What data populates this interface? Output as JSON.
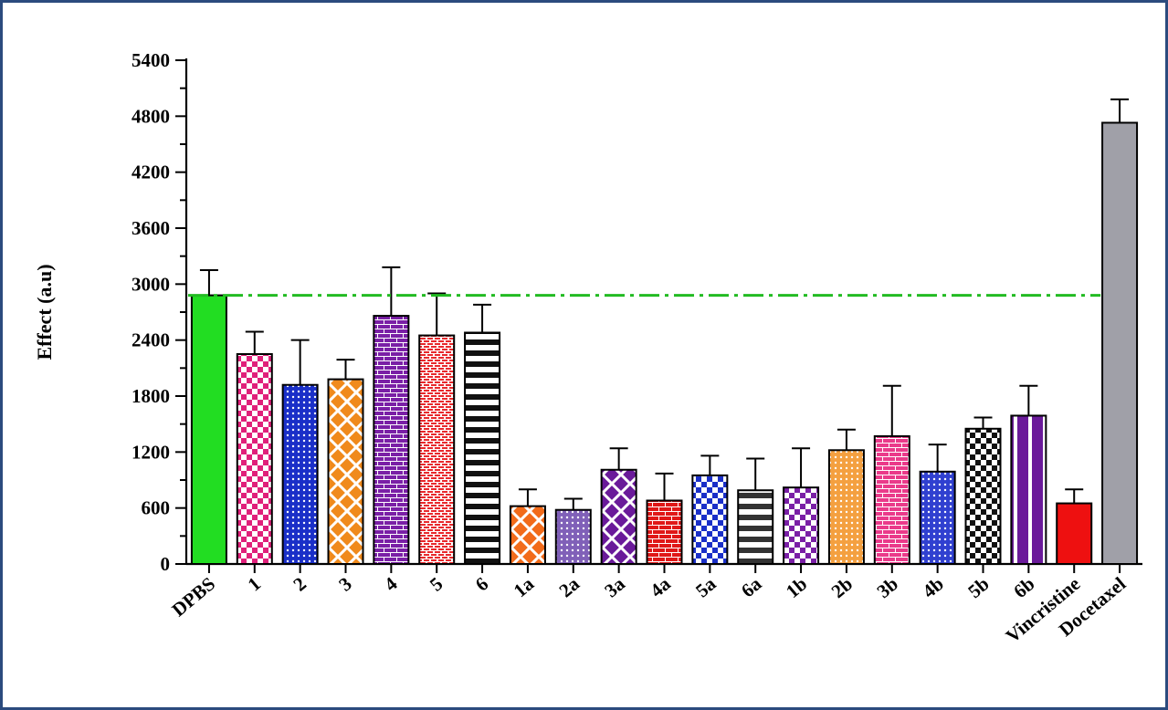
{
  "chart_data": {
    "type": "bar",
    "ylabel": "Effect (a.u)",
    "xlabel": "",
    "ylim": [
      0,
      5400
    ],
    "yticks": [
      0,
      600,
      1200,
      1800,
      2400,
      3000,
      3600,
      4200,
      4800,
      5400
    ],
    "grid": false,
    "reference_line": {
      "value": 2880,
      "style": "dash-dot",
      "color": "#22bb22"
    },
    "categories": [
      "DPBS",
      "1",
      "2",
      "3",
      "4",
      "5",
      "6",
      "1a",
      "2a",
      "3a",
      "4a",
      "5a",
      "6a",
      "1b",
      "2b",
      "3b",
      "4b",
      "5b",
      "6b",
      "Vincristine",
      "Docetaxel"
    ],
    "values": [
      2880,
      2250,
      1920,
      1980,
      2660,
      2450,
      2480,
      620,
      580,
      1010,
      680,
      950,
      790,
      820,
      1220,
      1370,
      990,
      1450,
      1590,
      650,
      4730
    ],
    "errors": [
      270,
      240,
      480,
      210,
      520,
      450,
      300,
      180,
      120,
      230,
      290,
      210,
      340,
      420,
      220,
      540,
      290,
      120,
      320,
      150,
      250
    ],
    "bar_styles": [
      {
        "fill": "#22dd22",
        "pattern": "solid"
      },
      {
        "fill": "#e0207a",
        "pattern": "checker"
      },
      {
        "fill": "#1a2fc8",
        "pattern": "dots"
      },
      {
        "fill": "#f08a1c",
        "pattern": "diamond"
      },
      {
        "fill": "#7a1fa6",
        "pattern": "brick"
      },
      {
        "fill": "#e8282c",
        "pattern": "smallbrick"
      },
      {
        "fill": "#111111",
        "pattern": "hstripe"
      },
      {
        "fill": "#f26b1a",
        "pattern": "diamond"
      },
      {
        "fill": "#8060b8",
        "pattern": "dots"
      },
      {
        "fill": "#6a1a9a",
        "pattern": "diamond"
      },
      {
        "fill": "#e01818",
        "pattern": "brick"
      },
      {
        "fill": "#1a2fc8",
        "pattern": "checker"
      },
      {
        "fill": "#333333",
        "pattern": "hstripe"
      },
      {
        "fill": "#7a1fa6",
        "pattern": "checker"
      },
      {
        "fill": "#f4a040",
        "pattern": "dots"
      },
      {
        "fill": "#ea3a8a",
        "pattern": "brick"
      },
      {
        "fill": "#3040d0",
        "pattern": "dots"
      },
      {
        "fill": "#111111",
        "pattern": "checker"
      },
      {
        "fill": "#6a1a9a",
        "pattern": "vstripe"
      },
      {
        "fill": "#ee1010",
        "pattern": "solid"
      },
      {
        "fill": "#a0a0a8",
        "pattern": "solid"
      }
    ]
  }
}
